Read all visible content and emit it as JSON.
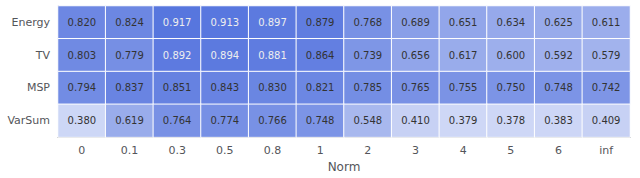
{
  "chart_data": {
    "type": "heatmap",
    "xlabel": "Norm",
    "categories": [
      "0",
      "0.1",
      "0.3",
      "0.5",
      "0.8",
      "1",
      "2",
      "3",
      "4",
      "5",
      "6",
      "inf"
    ],
    "rows": [
      "Energy",
      "TV",
      "MSP",
      "VarSum"
    ],
    "values": [
      [
        0.82,
        0.824,
        0.917,
        0.913,
        0.897,
        0.879,
        0.768,
        0.689,
        0.651,
        0.634,
        0.625,
        0.611
      ],
      [
        0.803,
        0.779,
        0.892,
        0.894,
        0.881,
        0.864,
        0.739,
        0.656,
        0.617,
        0.6,
        0.592,
        0.579
      ],
      [
        0.794,
        0.837,
        0.851,
        0.843,
        0.83,
        0.821,
        0.785,
        0.765,
        0.755,
        0.75,
        0.748,
        0.742
      ],
      [
        0.38,
        0.619,
        0.764,
        0.774,
        0.766,
        0.748,
        0.548,
        0.41,
        0.379,
        0.378,
        0.383,
        0.409
      ]
    ],
    "value_labels": [
      [
        "0.820",
        "0.824",
        "0.917",
        "0.913",
        "0.897",
        "0.879",
        "0.768",
        "0.689",
        "0.651",
        "0.634",
        "0.625",
        "0.611"
      ],
      [
        "0.803",
        "0.779",
        "0.892",
        "0.894",
        "0.881",
        "0.864",
        "0.739",
        "0.656",
        "0.617",
        "0.600",
        "0.592",
        "0.579"
      ],
      [
        "0.794",
        "0.837",
        "0.851",
        "0.843",
        "0.830",
        "0.821",
        "0.785",
        "0.765",
        "0.755",
        "0.750",
        "0.748",
        "0.742"
      ],
      [
        "0.380",
        "0.619",
        "0.764",
        "0.774",
        "0.766",
        "0.748",
        "0.548",
        "0.410",
        "0.379",
        "0.378",
        "0.383",
        "0.409"
      ]
    ],
    "color_range": [
      0.35,
      0.95
    ],
    "data_labels": true
  }
}
